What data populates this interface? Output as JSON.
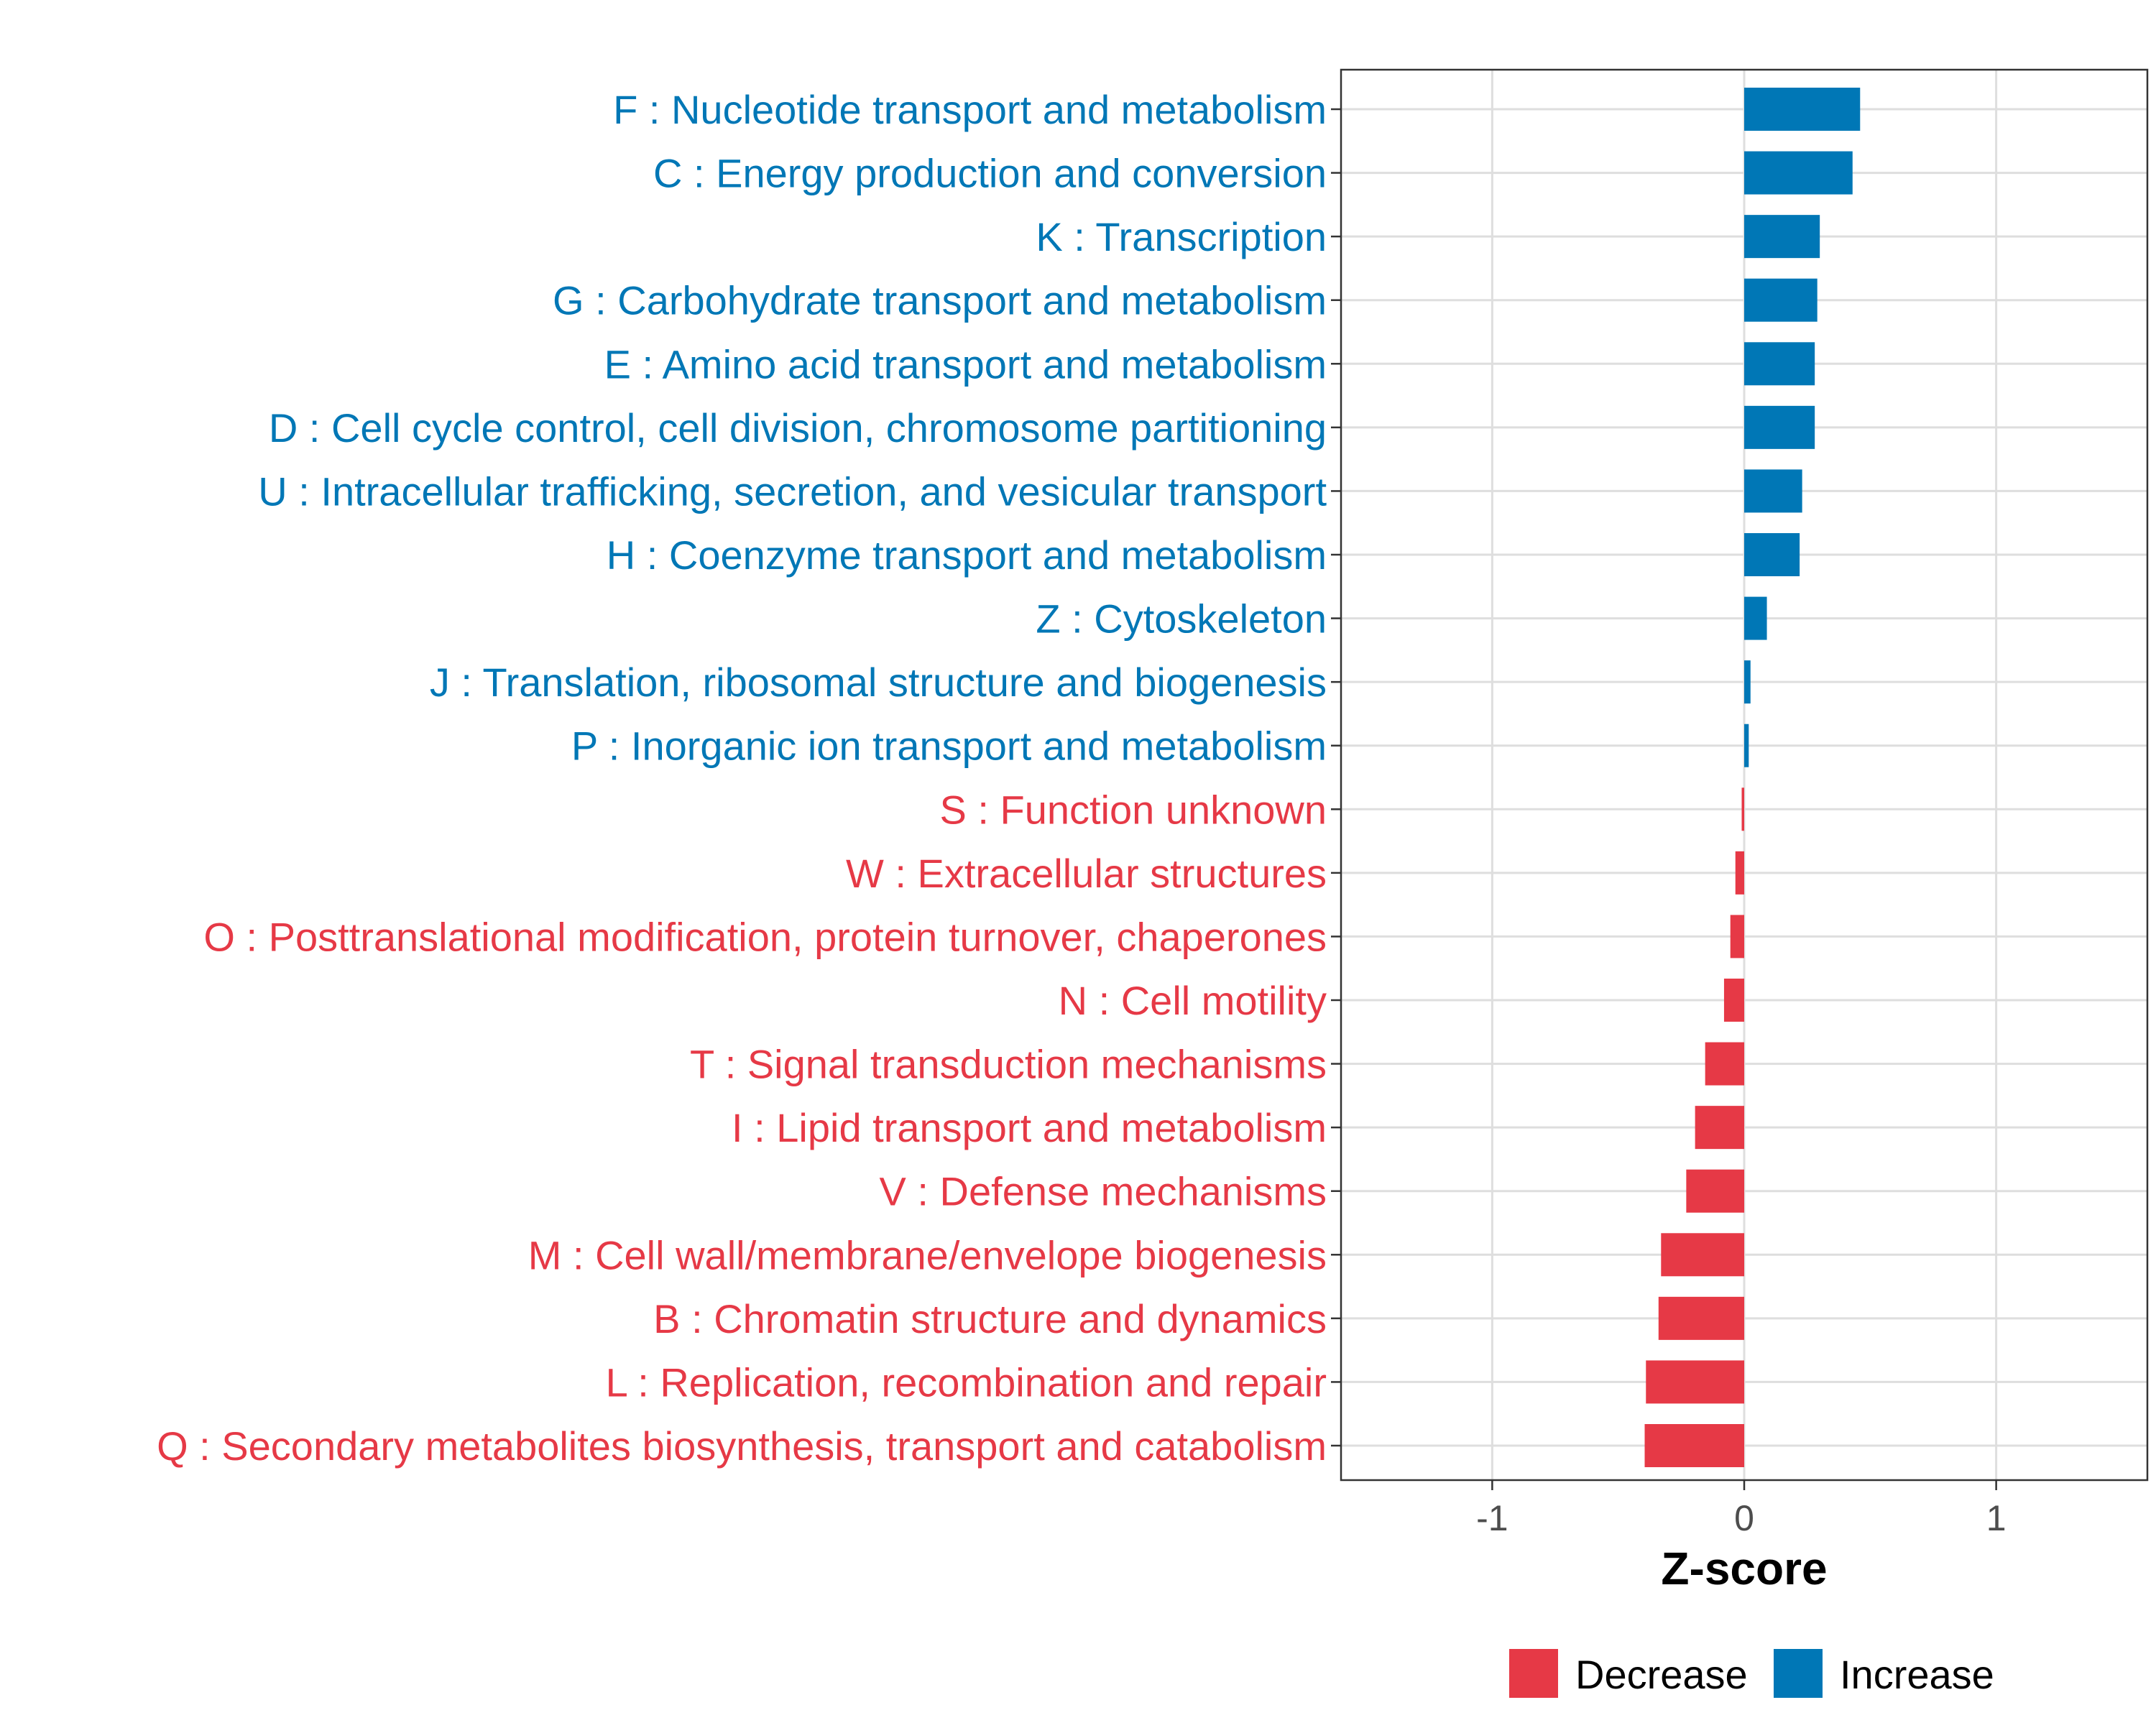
{
  "chart_data": {
    "type": "bar",
    "orientation": "horizontal",
    "xlabel": "Z-score",
    "xlim": [
      -1.6,
      1.6
    ],
    "xticks": [
      {
        "value": -1,
        "label": "-1"
      },
      {
        "value": 0,
        "label": "0"
      },
      {
        "value": 1,
        "label": "1"
      }
    ],
    "grid": true,
    "legend_position": "bottom",
    "colors": {
      "Decrease": "#E63946",
      "Increase": "#0077B6"
    },
    "legend": [
      {
        "key": "Decrease",
        "label": "Decrease"
      },
      {
        "key": "Increase",
        "label": "Increase"
      }
    ],
    "categories": [
      {
        "label": "F : Nucleotide transport and metabolism",
        "value": 0.46,
        "group": "Increase"
      },
      {
        "label": "C : Energy production and conversion",
        "value": 0.43,
        "group": "Increase"
      },
      {
        "label": "K : Transcription",
        "value": 0.3,
        "group": "Increase"
      },
      {
        "label": "G : Carbohydrate transport and metabolism",
        "value": 0.29,
        "group": "Increase"
      },
      {
        "label": "E : Amino acid transport and metabolism",
        "value": 0.28,
        "group": "Increase"
      },
      {
        "label": "D : Cell cycle control, cell division, chromosome partitioning",
        "value": 0.28,
        "group": "Increase"
      },
      {
        "label": "U : Intracellular trafficking, secretion, and vesicular transport",
        "value": 0.23,
        "group": "Increase"
      },
      {
        "label": "H : Coenzyme transport and metabolism",
        "value": 0.22,
        "group": "Increase"
      },
      {
        "label": "Z : Cytoskeleton",
        "value": 0.09,
        "group": "Increase"
      },
      {
        "label": "J : Translation, ribosomal structure and biogenesis",
        "value": 0.025,
        "group": "Increase"
      },
      {
        "label": "P : Inorganic ion transport and metabolism",
        "value": 0.018,
        "group": "Increase"
      },
      {
        "label": "S : Function unknown",
        "value": -0.01,
        "group": "Decrease"
      },
      {
        "label": "W : Extracellular structures",
        "value": -0.035,
        "group": "Decrease"
      },
      {
        "label": "O : Posttranslational modification, protein turnover, chaperones",
        "value": -0.055,
        "group": "Decrease"
      },
      {
        "label": "N : Cell motility",
        "value": -0.08,
        "group": "Decrease"
      },
      {
        "label": "T : Signal transduction mechanisms",
        "value": -0.155,
        "group": "Decrease"
      },
      {
        "label": "I : Lipid transport and metabolism",
        "value": -0.195,
        "group": "Decrease"
      },
      {
        "label": "V : Defense mechanisms",
        "value": -0.23,
        "group": "Decrease"
      },
      {
        "label": "M : Cell wall/membrane/envelope biogenesis",
        "value": -0.33,
        "group": "Decrease"
      },
      {
        "label": "B : Chromatin structure and dynamics",
        "value": -0.34,
        "group": "Decrease"
      },
      {
        "label": "L : Replication, recombination and repair",
        "value": -0.39,
        "group": "Decrease"
      },
      {
        "label": "Q : Secondary metabolites biosynthesis, transport and catabolism",
        "value": -0.395,
        "group": "Decrease"
      }
    ]
  }
}
